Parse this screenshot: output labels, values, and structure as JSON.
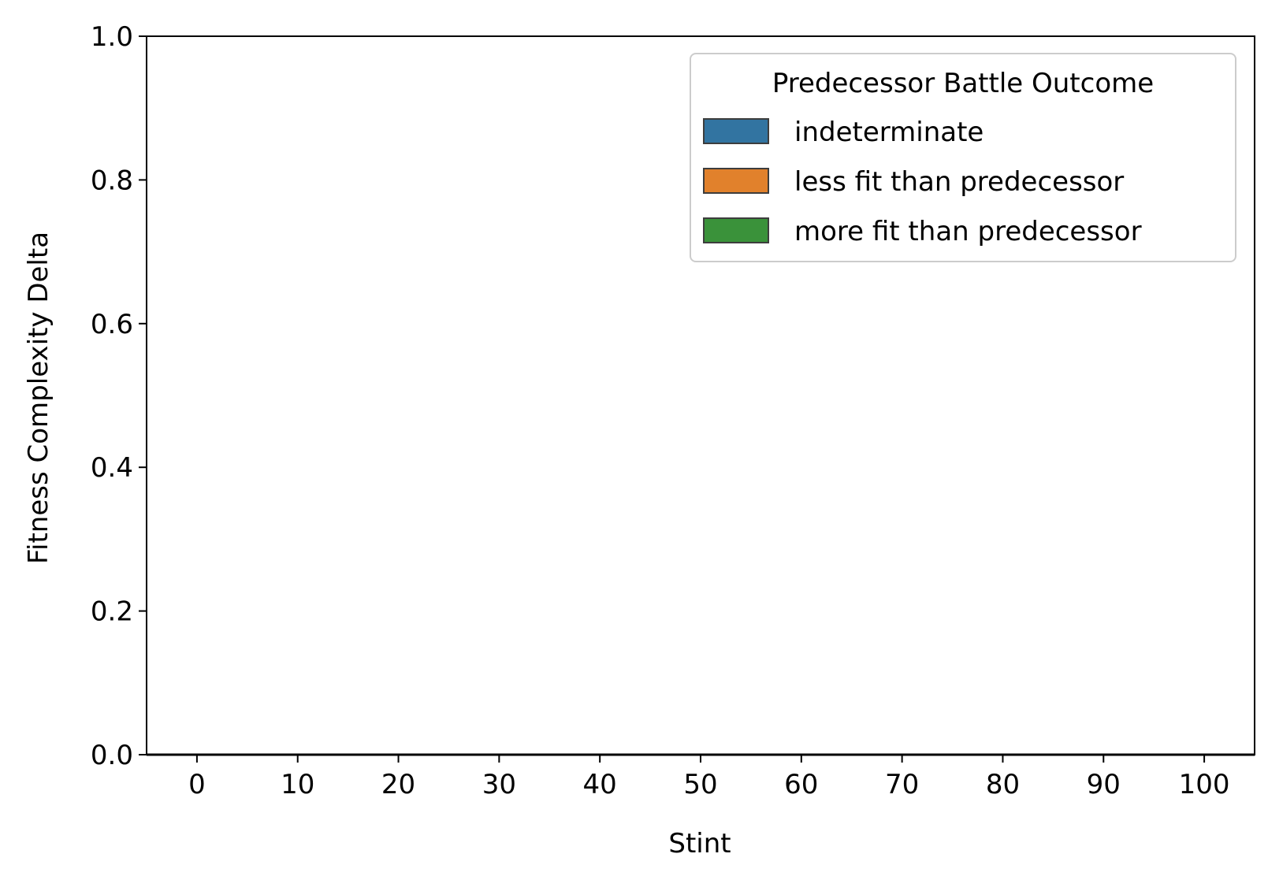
{
  "chart_data": {
    "type": "bar",
    "title": "",
    "xlabel": "Stint",
    "ylabel": "Fitness Complexity Delta",
    "x_ticks": [
      0,
      10,
      20,
      30,
      40,
      50,
      60,
      70,
      80,
      90,
      100
    ],
    "y_ticks": [
      "0.0",
      "0.2",
      "0.4",
      "0.6",
      "0.8",
      "1.0"
    ],
    "xlim": [
      -5,
      105
    ],
    "ylim": [
      0,
      1
    ],
    "grid": false,
    "legend": {
      "title": "Predecessor Battle Outcome",
      "placement": "top-right"
    },
    "series": [
      {
        "name": "indeterminate",
        "color": "#3274a1",
        "values": []
      },
      {
        "name": "less fit than predecessor",
        "color": "#e1812c",
        "values": []
      },
      {
        "name": "more fit than predecessor",
        "color": "#3a923a",
        "values": []
      }
    ]
  }
}
